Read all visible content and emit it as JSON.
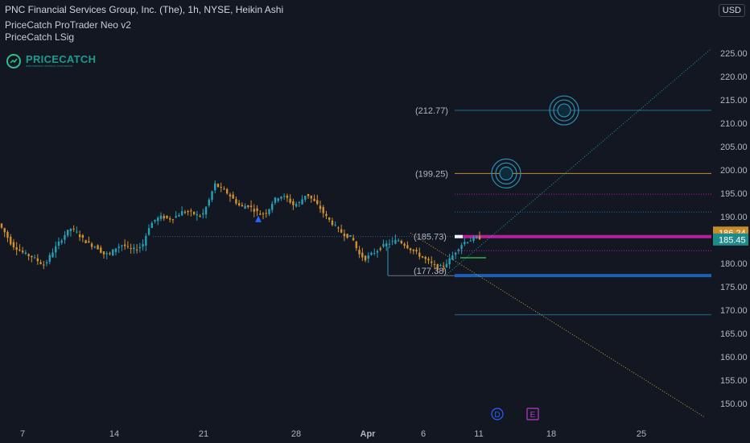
{
  "header": {
    "title": "PNC Financial Services Group, Inc. (The), 1h, NYSE, Heikin Ashi",
    "indicator_1": "PriceCatch ProTrader Neo v2",
    "indicator_2": "PriceCatch LSig"
  },
  "logo": {
    "name": "PRICECATCH",
    "tagline": "EMPOWERING FINANCIAL CONFIDENCE"
  },
  "currency": "USD",
  "colors": {
    "background": "#131722",
    "bull": "#26a0b5",
    "bear": "#d1912e",
    "magenta_level": "#b5209a",
    "blue_level": "#1e5fb3",
    "orange_level": "#c78c2a",
    "teal_level": "#1f6f94"
  },
  "price_tags": [
    {
      "label": "186.24",
      "value": 186.24,
      "color": "#c78c2a"
    },
    {
      "label": "185.45",
      "value": 185.45,
      "color": "#1f8a8a"
    }
  ],
  "level_labels": [
    {
      "text": "(212.77)",
      "value": 212.77
    },
    {
      "text": "(199.25)",
      "value": 199.25
    },
    {
      "text": "(185.73)",
      "value": 185.73
    },
    {
      "text": "(177.38)",
      "value": 177.38
    }
  ],
  "event_markers": [
    {
      "letter": "D",
      "color": "#2962ff",
      "shape": "circle"
    },
    {
      "letter": "E",
      "color": "#b33cc7",
      "shape": "square"
    }
  ],
  "chart_data": {
    "type": "candlestick",
    "style": "Heikin Ashi",
    "symbol": "PNC",
    "exchange": "NYSE",
    "interval": "1h",
    "x_ticks": [
      "7",
      "14",
      "21",
      "28",
      "Apr",
      "6",
      "11",
      "18",
      "25"
    ],
    "y_ticks": [
      150,
      155,
      160,
      165,
      170,
      175,
      180,
      185,
      190,
      195,
      200,
      205,
      210,
      215,
      220,
      225
    ],
    "ylim": [
      147,
      226
    ],
    "last_price": 185.45,
    "price_path_approx": [
      [
        0,
        188.5
      ],
      [
        1,
        186.5
      ],
      [
        2,
        184
      ],
      [
        3,
        183
      ],
      [
        4,
        182
      ],
      [
        5,
        181.5
      ],
      [
        6,
        180.5
      ],
      [
        7,
        179.5
      ],
      [
        8,
        182
      ],
      [
        9,
        184
      ],
      [
        10,
        186
      ],
      [
        11,
        187.5
      ],
      [
        12,
        186.5
      ],
      [
        13,
        185
      ],
      [
        14,
        184
      ],
      [
        15,
        183.5
      ],
      [
        16,
        182
      ],
      [
        17,
        182
      ],
      [
        18,
        183.5
      ],
      [
        19,
        184
      ],
      [
        20,
        183
      ],
      [
        21,
        183
      ],
      [
        22,
        184
      ],
      [
        23,
        188
      ],
      [
        24,
        189.5
      ],
      [
        25,
        190
      ],
      [
        26,
        189.5
      ],
      [
        27,
        190
      ],
      [
        28,
        191
      ],
      [
        29,
        191
      ],
      [
        30,
        190.5
      ],
      [
        31,
        190
      ],
      [
        32,
        193
      ],
      [
        33,
        197
      ],
      [
        34,
        196
      ],
      [
        35,
        195
      ],
      [
        36,
        193.5
      ],
      [
        37,
        192
      ],
      [
        38,
        192.5
      ],
      [
        39,
        191.5
      ],
      [
        40,
        190.5
      ],
      [
        41,
        191
      ],
      [
        42,
        193.5
      ],
      [
        43,
        194.5
      ],
      [
        44,
        194
      ],
      [
        45,
        192.5
      ],
      [
        46,
        193
      ],
      [
        47,
        195
      ],
      [
        48,
        193.5
      ],
      [
        49,
        192
      ],
      [
        50,
        190
      ],
      [
        51,
        188.5
      ],
      [
        52,
        187
      ],
      [
        53,
        186
      ],
      [
        54,
        185.5
      ],
      [
        55,
        182
      ],
      [
        56,
        181
      ],
      [
        57,
        182
      ],
      [
        58,
        183
      ],
      [
        59,
        184
      ],
      [
        60,
        184.5
      ],
      [
        61,
        185
      ],
      [
        62,
        184
      ],
      [
        63,
        183
      ],
      [
        64,
        182
      ],
      [
        65,
        181
      ],
      [
        66,
        180
      ],
      [
        67,
        179
      ],
      [
        68,
        179.5
      ],
      [
        69,
        181
      ],
      [
        70,
        183
      ],
      [
        71,
        184.5
      ],
      [
        72,
        185
      ],
      [
        73,
        185.45
      ]
    ],
    "horizontal_levels": [
      212.77,
      199.25,
      194.8,
      191.0,
      185.73,
      182.7,
      181.2,
      177.38,
      169.0
    ],
    "projection_circles_at": [
      212.77,
      199.25
    ],
    "signal_marker": {
      "type": "triangle-up",
      "near_price": 189.5
    }
  }
}
